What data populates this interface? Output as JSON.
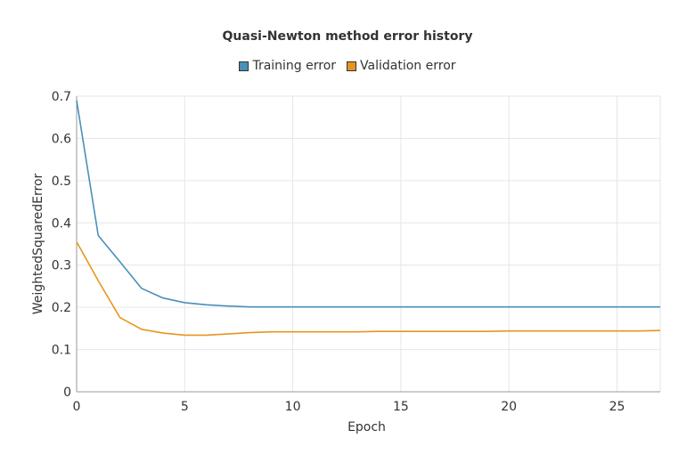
{
  "chart_data": {
    "type": "line",
    "title": "Quasi-Newton method error history",
    "xlabel": "Epoch",
    "ylabel": "WeightedSquaredError",
    "xlim": [
      0,
      27
    ],
    "ylim": [
      0,
      0.7
    ],
    "xticks": [
      0,
      5,
      10,
      15,
      20,
      25
    ],
    "yticks": [
      0,
      0.1,
      0.2,
      0.3,
      0.4,
      0.5,
      0.6,
      0.7
    ],
    "ytick_labels": [
      "0",
      "0.1",
      "0.2",
      "0.3",
      "0.4",
      "0.5",
      "0.6",
      "0.7"
    ],
    "grid": true,
    "legend_position": "top-center",
    "x": [
      0,
      1,
      2,
      3,
      4,
      5,
      6,
      7,
      8,
      9,
      10,
      11,
      12,
      13,
      14,
      15,
      16,
      17,
      18,
      19,
      20,
      21,
      22,
      23,
      24,
      25,
      26,
      27
    ],
    "series": [
      {
        "name": "Training error",
        "color": "#4a90b8",
        "values": [
          0.69,
          0.37,
          0.308,
          0.245,
          0.222,
          0.211,
          0.206,
          0.203,
          0.201,
          0.201,
          0.201,
          0.201,
          0.201,
          0.201,
          0.201,
          0.201,
          0.201,
          0.201,
          0.201,
          0.201,
          0.201,
          0.201,
          0.201,
          0.201,
          0.201,
          0.201,
          0.201,
          0.201
        ]
      },
      {
        "name": "Validation error",
        "color": "#e8951f",
        "values": [
          0.355,
          0.263,
          0.176,
          0.148,
          0.139,
          0.134,
          0.134,
          0.137,
          0.14,
          0.142,
          0.142,
          0.142,
          0.142,
          0.142,
          0.143,
          0.143,
          0.143,
          0.143,
          0.143,
          0.143,
          0.144,
          0.144,
          0.144,
          0.144,
          0.144,
          0.144,
          0.144,
          0.145
        ]
      }
    ]
  }
}
